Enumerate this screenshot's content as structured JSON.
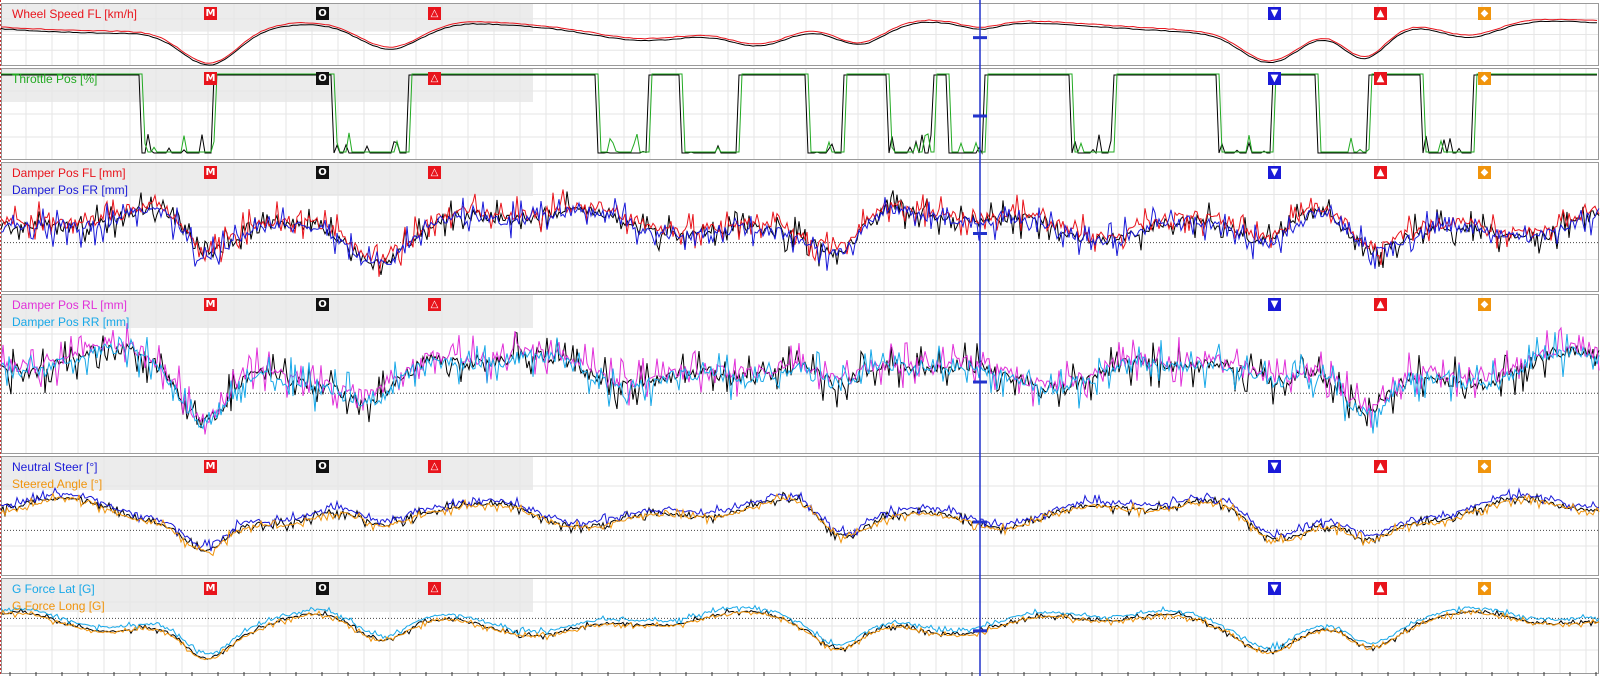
{
  "colors": {
    "black": "#000000",
    "red": "#e8141c",
    "green": "#22aa22",
    "blue": "#1a1ad8",
    "magenta": "#e030d8",
    "cyan": "#18a8e8",
    "orange": "#f0940c",
    "cursor": "#2233cc",
    "grid": "#e6e6e6",
    "band": "#ececec"
  },
  "markers": [
    {
      "name": "M",
      "glyph": "M",
      "icon": "marker-m-icon",
      "color": "#e8141c"
    },
    {
      "name": "O",
      "glyph": "O",
      "icon": "marker-o-icon",
      "color": "#111111"
    },
    {
      "name": "triangle",
      "glyph": "△",
      "icon": "marker-triangle-icon",
      "color": "#e8141c"
    },
    {
      "name": "down",
      "glyph": "▼",
      "icon": "marker-down-icon",
      "color": "#1a1ad8"
    },
    {
      "name": "up",
      "glyph": "▲",
      "icon": "marker-up-icon",
      "color": "#e8141c"
    },
    {
      "name": "diamond",
      "glyph": "◆",
      "icon": "marker-diamond-icon",
      "color": "#f0940c"
    }
  ],
  "chart_data": [
    {
      "type": "line",
      "series": [
        {
          "name": "Wheel Speed FL [km/h]",
          "color": "#e8141c"
        }
      ],
      "reference_series_color": "#000000",
      "grid": true
    },
    {
      "type": "line",
      "series": [
        {
          "name": "Throttle Pos [%]",
          "color": "#22aa22"
        }
      ],
      "reference_series_color": "#000000",
      "grid": true
    },
    {
      "type": "line",
      "series": [
        {
          "name": "Damper Pos FL [mm]",
          "color": "#e8141c"
        },
        {
          "name": "Damper Pos FR [mm]",
          "color": "#1a1ad8"
        }
      ],
      "reference_series_color": "#000000",
      "grid": true
    },
    {
      "type": "line",
      "series": [
        {
          "name": "Damper Pos RL [mm]",
          "color": "#e030d8"
        },
        {
          "name": "Damper Pos RR [mm]",
          "color": "#18a8e8"
        }
      ],
      "reference_series_color": "#000000",
      "grid": true
    },
    {
      "type": "line",
      "series": [
        {
          "name": "Neutral Steer [°]",
          "color": "#1a1ad8"
        },
        {
          "name": "Steered Angle [°]",
          "color": "#f0940c"
        }
      ],
      "reference_series_color": "#000000",
      "grid": true
    },
    {
      "type": "line",
      "series": [
        {
          "name": "G Force Lat [G]",
          "color": "#18a8e8"
        },
        {
          "name": "G Force Long [G]",
          "color": "#f0940c"
        }
      ],
      "reference_series_color": "#000000",
      "grid": true
    }
  ]
}
